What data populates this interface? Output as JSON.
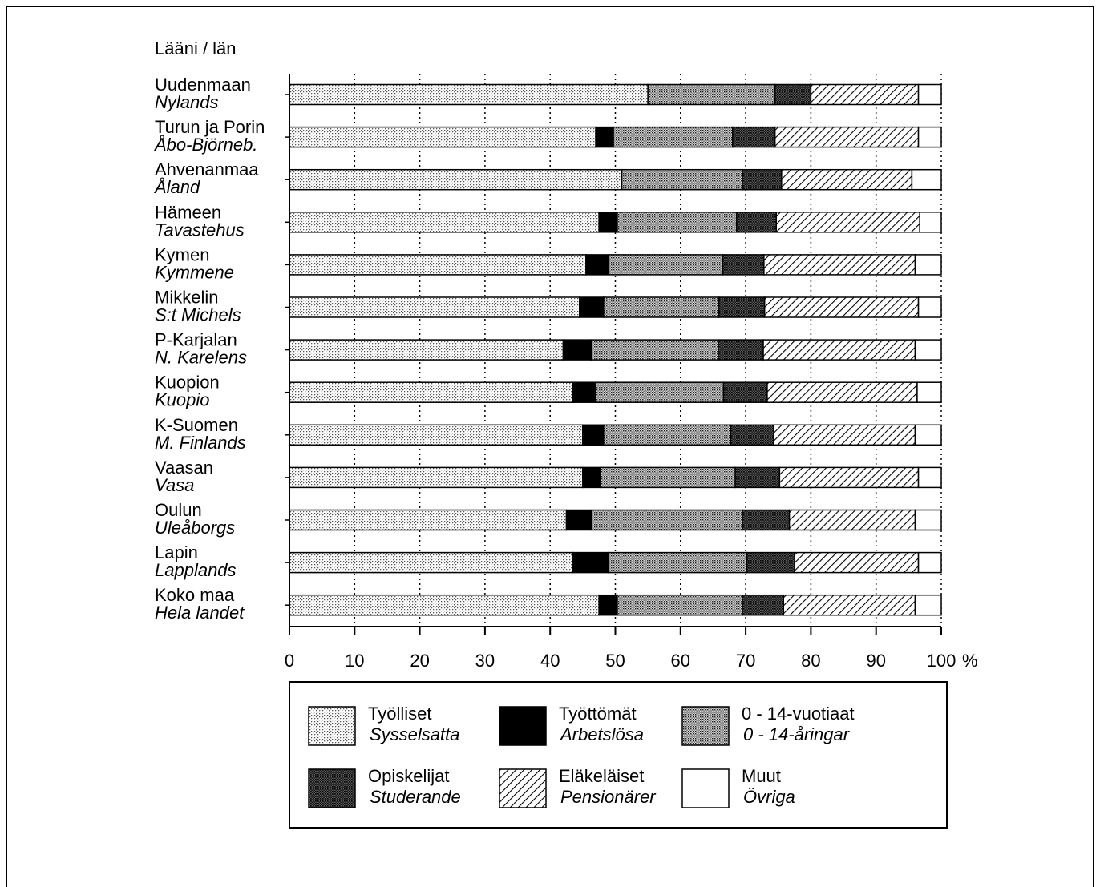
{
  "chart_data": {
    "type": "bar",
    "orientation": "horizontal",
    "stacked": true,
    "title": "",
    "ylabel": "Lääni / län",
    "xlabel": "",
    "x_unit": "%",
    "xlim": [
      0,
      100
    ],
    "x_ticks": [
      0,
      10,
      20,
      30,
      40,
      50,
      60,
      70,
      80,
      90,
      100
    ],
    "grid": "vertical dotted",
    "legend_position": "bottom",
    "categories": [
      {
        "fi": "Uudenmaan",
        "sv": "Nylands"
      },
      {
        "fi": "Turun ja Porin",
        "sv": "Åbo-Björneb."
      },
      {
        "fi": "Ahvenanmaa",
        "sv": "Åland"
      },
      {
        "fi": "Hämeen",
        "sv": "Tavastehus"
      },
      {
        "fi": "Kymen",
        "sv": "Kymmene"
      },
      {
        "fi": "Mikkelin",
        "sv": "S:t Michels"
      },
      {
        "fi": "P-Karjalan",
        "sv": "N. Karelens"
      },
      {
        "fi": "Kuopion",
        "sv": "Kuopio"
      },
      {
        "fi": "K-Suomen",
        "sv": "M. Finlands"
      },
      {
        "fi": "Vaasan",
        "sv": "Vasa"
      },
      {
        "fi": "Oulun",
        "sv": "Uleåborgs"
      },
      {
        "fi": "Lapin",
        "sv": "Lapplands"
      },
      {
        "fi": "Koko maa",
        "sv": "Hela landet"
      }
    ],
    "series": [
      {
        "name": "Työlliset",
        "name_sv": "Sysselsatta",
        "pattern": "light-dots",
        "values": [
          55.0,
          47.0,
          51.0,
          47.5,
          45.5,
          44.5,
          42.0,
          43.5,
          45.0,
          45.0,
          42.5,
          43.5,
          47.5
        ]
      },
      {
        "name": "Työttömät",
        "name_sv": "Arbetslösa",
        "pattern": "black",
        "values": [
          0.0,
          2.7,
          0.0,
          2.8,
          3.5,
          3.7,
          4.3,
          3.5,
          3.2,
          2.7,
          3.9,
          5.4,
          2.8
        ]
      },
      {
        "name": "0 - 14-vuotiaat",
        "name_sv": "0 - 14-åringar",
        "pattern": "medium-dots",
        "values": [
          19.5,
          18.3,
          18.5,
          18.3,
          17.5,
          17.7,
          19.5,
          19.6,
          19.5,
          20.7,
          23.1,
          21.3,
          19.2
        ]
      },
      {
        "name": "Opiskelijat",
        "name_sv": "Studerande",
        "pattern": "dark-dots",
        "values": [
          5.5,
          6.5,
          6.0,
          6.1,
          6.3,
          7.0,
          6.9,
          6.7,
          6.6,
          6.8,
          7.2,
          7.3,
          6.3
        ]
      },
      {
        "name": "Eläkeläiset",
        "name_sv": "Pensionärer",
        "pattern": "hatch",
        "values": [
          16.5,
          22.0,
          20.0,
          22.0,
          23.2,
          23.6,
          23.3,
          23.0,
          21.7,
          21.3,
          19.3,
          19.0,
          20.2
        ]
      },
      {
        "name": "Muut",
        "name_sv": "Övriga",
        "pattern": "white",
        "values": [
          3.5,
          3.5,
          4.5,
          3.3,
          4.0,
          3.5,
          4.0,
          3.7,
          4.0,
          3.5,
          4.0,
          3.5,
          4.0
        ]
      }
    ]
  }
}
